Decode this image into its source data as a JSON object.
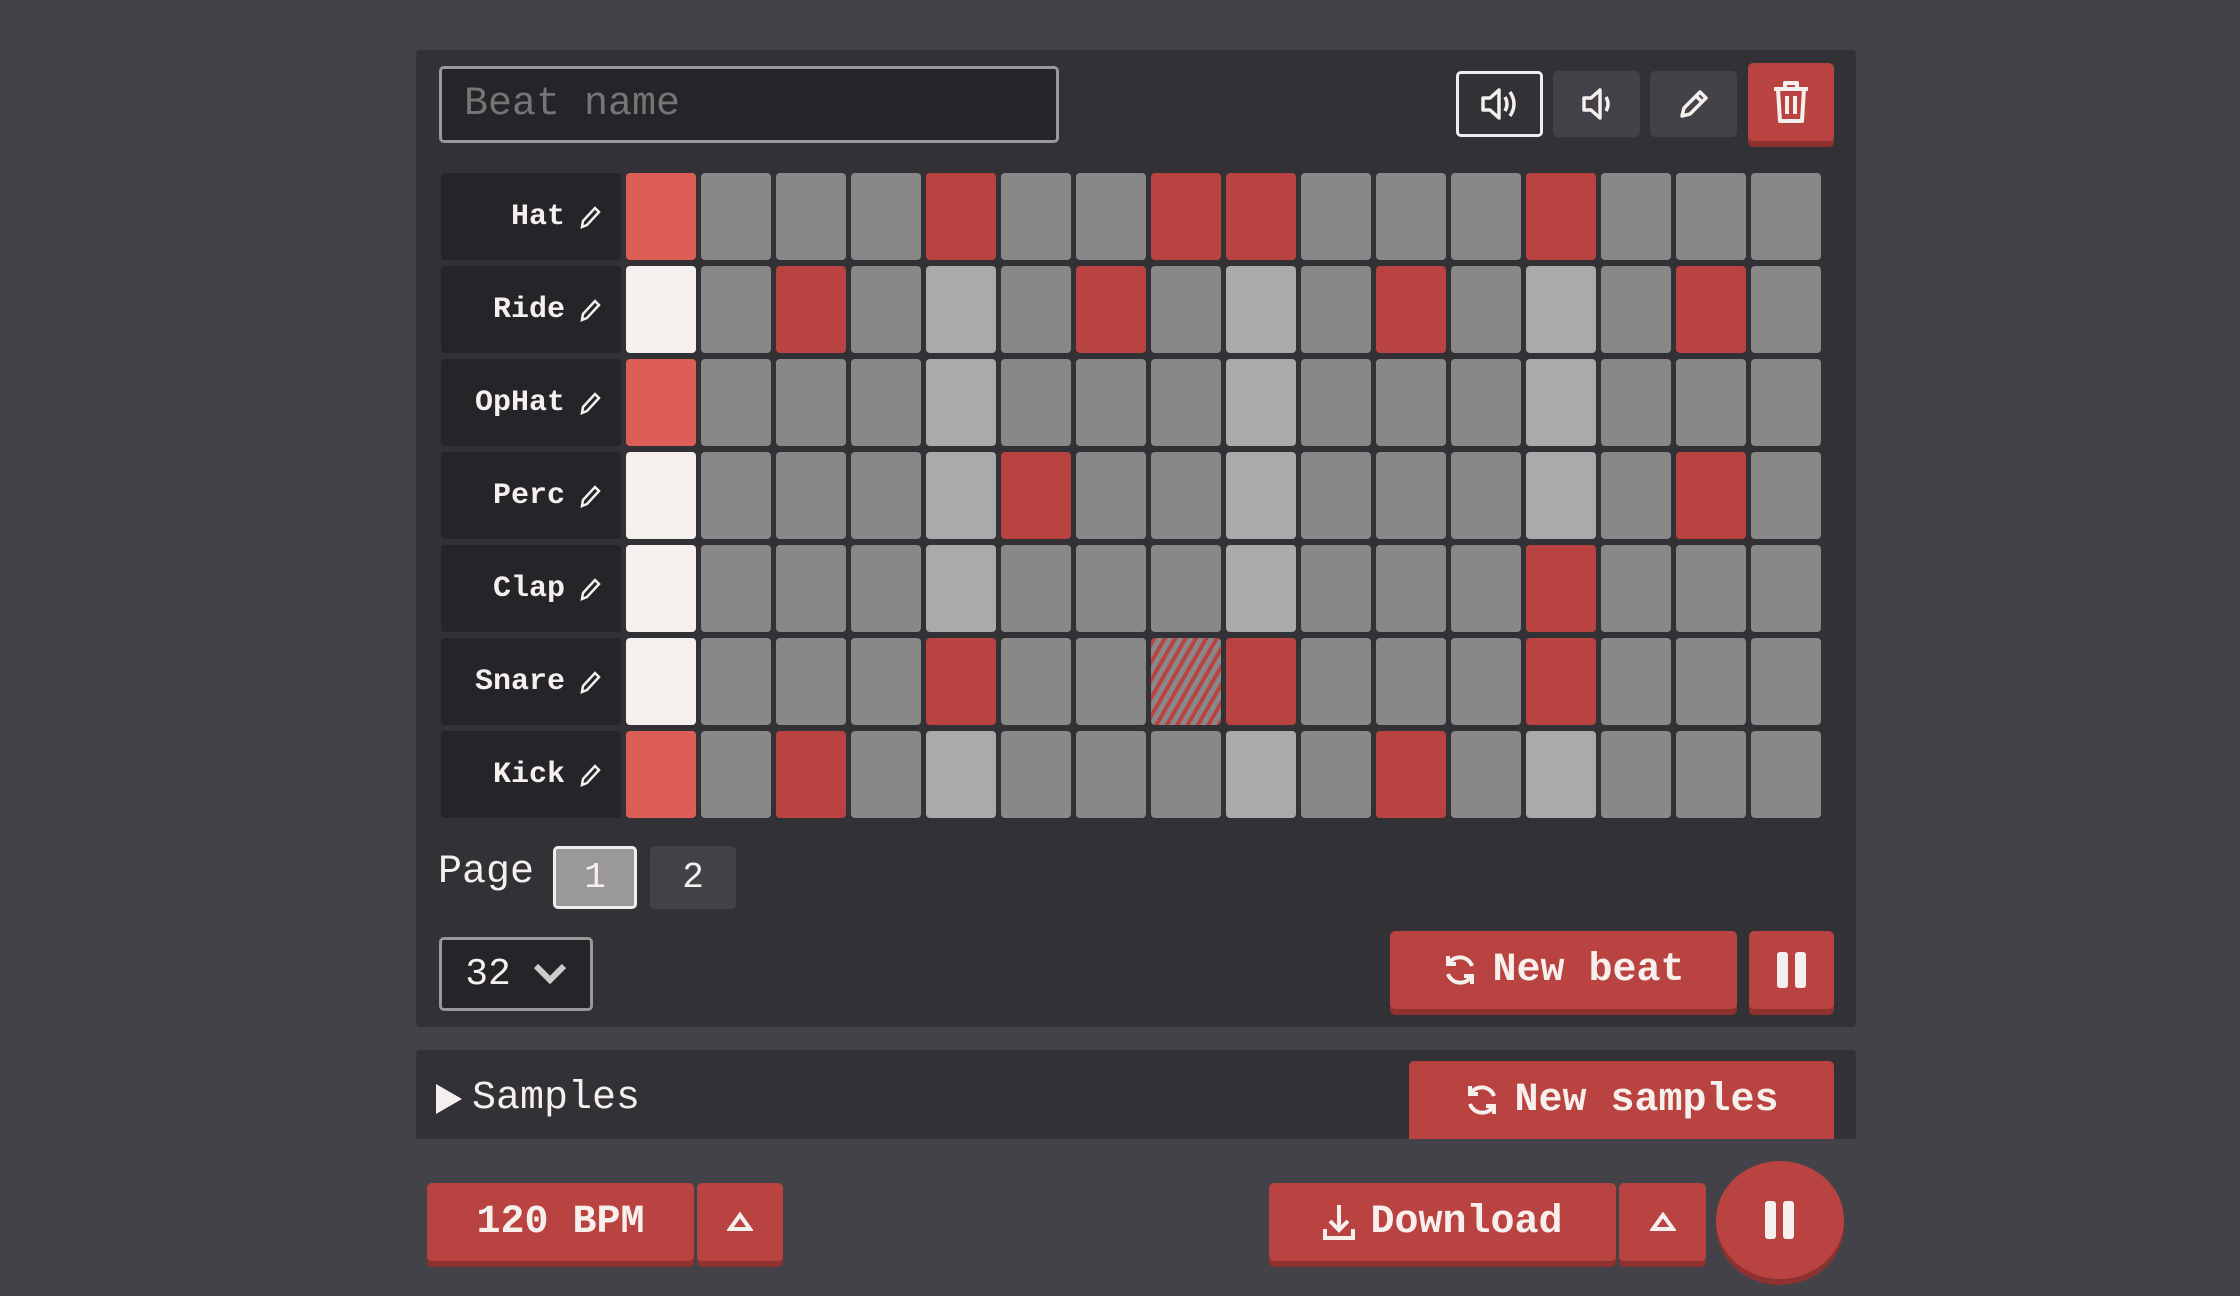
{
  "beat_name": {
    "value": "",
    "placeholder": "Beat name"
  },
  "toolbar": {
    "icons": [
      "volume-loud-icon",
      "volume-low-icon",
      "pencil-icon",
      "trash-icon"
    ]
  },
  "colors": {
    "active": "#b94340",
    "playhead_active": "#dd5e57",
    "playhead_inactive": "#f5f0ee",
    "off": "#888888",
    "beat_marker": "#aaaaaa",
    "background": "#434248",
    "panel": "#323136"
  },
  "sequencer": {
    "playhead_step": 0,
    "beat_marker_every": 4,
    "tracks": [
      {
        "name": "Hat",
        "steps": "1000100110001000"
      },
      {
        "name": "Ride",
        "steps": "0010001000100010"
      },
      {
        "name": "OpHat",
        "steps": "1000000000000000"
      },
      {
        "name": "Perc",
        "steps": "0000010000000010"
      },
      {
        "name": "Clap",
        "steps": "0000000000001000"
      },
      {
        "name": "Snare",
        "steps": "0000100010001000",
        "hover_step": 7
      },
      {
        "name": "Kick",
        "steps": "1010000000100000"
      }
    ]
  },
  "pagination": {
    "label": "Page",
    "pages": [
      "1",
      "2"
    ],
    "current": "1"
  },
  "length_select": {
    "value": "32"
  },
  "new_beat_label": "New beat",
  "samples": {
    "label": "Samples",
    "new_samples_label": "New samples"
  },
  "bpm_label": "120 BPM",
  "download_label": "Download"
}
